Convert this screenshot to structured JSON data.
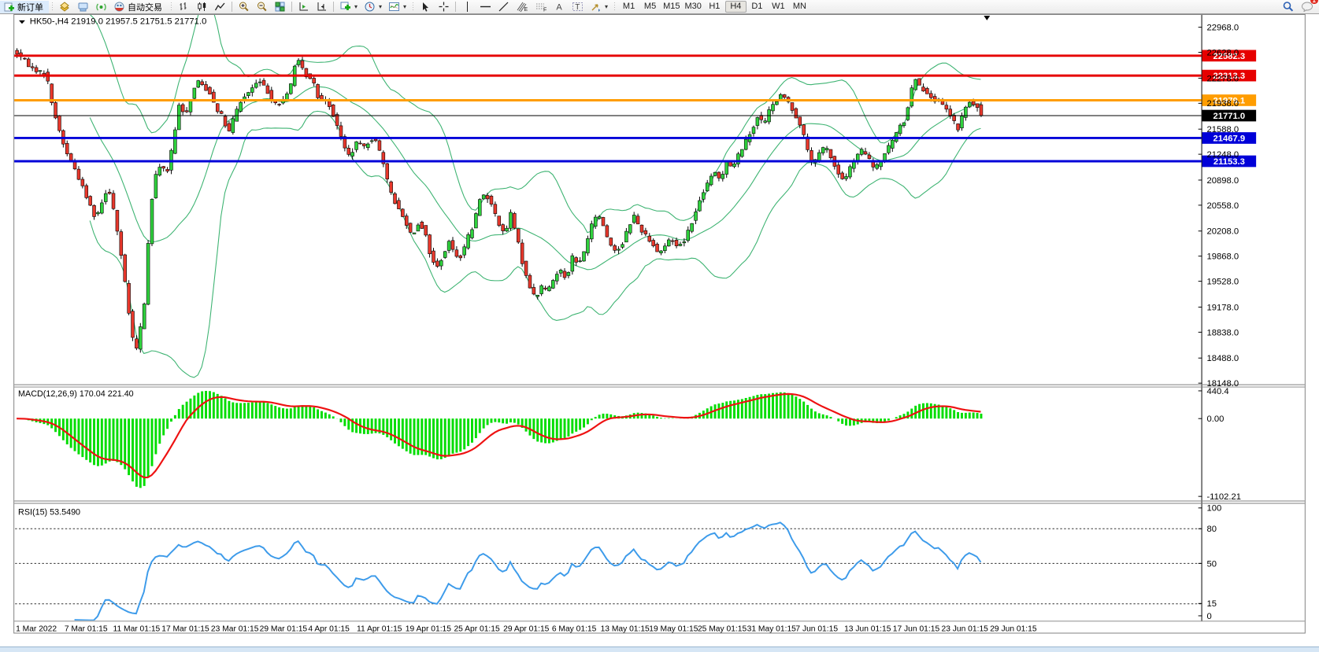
{
  "toolbar": {
    "new_order_label": "新订单",
    "auto_trading_label": "自动交易",
    "timeframes": [
      "M1",
      "M5",
      "M15",
      "M30",
      "H1",
      "H4",
      "D1",
      "W1",
      "MN"
    ],
    "active_timeframe": "H4",
    "notification_count": "1",
    "icons": [
      "new-order-plus",
      "charts-stack",
      "terminal",
      "signals",
      "autotrading-robot",
      "bar-chart",
      "candlestick-chart",
      "line-chart",
      "zoom-in",
      "zoom-out",
      "tile-windows",
      "scroll-to-end",
      "chart-shift",
      "new-chart",
      "periods-clock",
      "indicators",
      "cursor",
      "crosshair",
      "vertical-line",
      "horizontal-line",
      "trend-line",
      "fibonacci",
      "channels",
      "text",
      "text-label",
      "shapes",
      "search",
      "notifications"
    ]
  },
  "chart": {
    "title": "HK50-,H4",
    "ohlc_text": "21919.0 21957.5 21751.5 21771.0",
    "scale_ticks": [
      "22968.0",
      "22628.0",
      "22278.0",
      "21938.0",
      "21588.0",
      "21248.0",
      "20898.0",
      "20558.0",
      "20208.0",
      "19868.0",
      "19528.0",
      "19178.0",
      "18838.0",
      "18488.0",
      "18148.0"
    ],
    "levels": [
      {
        "value": "22582.3",
        "color": "#e60000",
        "width": 3
      },
      {
        "value": "22313.3",
        "color": "#e60000",
        "width": 3
      },
      {
        "value": "21979.1",
        "color": "#ff9d00",
        "width": 3
      },
      {
        "value": "21771.0",
        "color": "#000000",
        "width": 1
      },
      {
        "value": "21467.9",
        "color": "#0000d8",
        "width": 3
      },
      {
        "value": "21153.3",
        "color": "#0000d8",
        "width": 3
      }
    ]
  },
  "macd": {
    "label": "MACD(12,26,9) 170.04 221.40",
    "scale_values": [
      "440.4",
      "0.00",
      "-1102.21"
    ]
  },
  "rsi": {
    "label": "RSI(15) 53.5490",
    "scale_values": [
      "100",
      "80",
      "50",
      "15",
      "0"
    ],
    "dashed_levels": [
      80,
      50,
      15
    ]
  },
  "time_axis": {
    "labels": [
      [
        "1 Mar 2022",
        3
      ],
      [
        "7 Mar 01:15",
        66
      ],
      [
        "11 Mar 01:15",
        129
      ],
      [
        "17 Mar 01:15",
        192
      ],
      [
        "23 Mar 01:15",
        256
      ],
      [
        "29 Mar 01:15",
        319
      ],
      [
        "4 Apr 01:15",
        382
      ],
      [
        "11 Apr 01:15",
        445
      ],
      [
        "19 Apr 01:15",
        508
      ],
      [
        "25 Apr 01:15",
        571
      ],
      [
        "29 Apr 01:15",
        635
      ],
      [
        "6 May 01:15",
        698
      ],
      [
        "13 May 01:15",
        761
      ],
      [
        "19 May 01:15",
        824
      ],
      [
        "25 May 01:15",
        887
      ],
      [
        "31 May 01:15",
        951
      ],
      [
        "7 Jun 01:15",
        1014
      ],
      [
        "13 Jun 01:15",
        1077
      ],
      [
        "17 Jun 01:15",
        1140
      ],
      [
        "23 Jun 01:15",
        1203
      ],
      [
        "29 Jun 01:15",
        1266
      ]
    ]
  },
  "colors": {
    "bull": "#2fd13d",
    "bear": "#e8382c",
    "bollinger": "#3cb371",
    "macd_hist": "#00dd00",
    "macd_signal": "#ee1111",
    "rsi_line": "#3d9bea",
    "scale_text": "#000000"
  },
  "chart_data": {
    "type": "candlestick",
    "symbol": "HK50-",
    "timeframe": "H4",
    "last_bar": {
      "open": 21919.0,
      "high": 21957.5,
      "low": 21751.5,
      "close": 21771.0
    },
    "indicators": [
      "Bollinger Bands",
      "MACD(12,26,9)",
      "RSI(15)"
    ],
    "price_axis_range": [
      18148.0,
      22968.0
    ],
    "price_path": [
      [
        0,
        22650
      ],
      [
        10,
        22560
      ],
      [
        22,
        22420
      ],
      [
        32,
        22370
      ],
      [
        42,
        22330
      ],
      [
        50,
        21900
      ],
      [
        58,
        21600
      ],
      [
        66,
        21320
      ],
      [
        76,
        21120
      ],
      [
        86,
        20880
      ],
      [
        96,
        20620
      ],
      [
        106,
        20380
      ],
      [
        114,
        20600
      ],
      [
        122,
        20820
      ],
      [
        130,
        20470
      ],
      [
        138,
        19950
      ],
      [
        146,
        19350
      ],
      [
        152,
        18850
      ],
      [
        158,
        18560
      ],
      [
        164,
        18900
      ],
      [
        170,
        19300
      ],
      [
        176,
        20400
      ],
      [
        182,
        20900
      ],
      [
        190,
        21120
      ],
      [
        198,
        20980
      ],
      [
        206,
        21380
      ],
      [
        214,
        21900
      ],
      [
        222,
        21780
      ],
      [
        230,
        22020
      ],
      [
        238,
        22260
      ],
      [
        246,
        22160
      ],
      [
        254,
        22080
      ],
      [
        262,
        21880
      ],
      [
        270,
        21760
      ],
      [
        278,
        21520
      ],
      [
        286,
        21780
      ],
      [
        294,
        21960
      ],
      [
        302,
        22060
      ],
      [
        310,
        22160
      ],
      [
        318,
        22240
      ],
      [
        326,
        22140
      ],
      [
        334,
        22010
      ],
      [
        342,
        21910
      ],
      [
        350,
        21980
      ],
      [
        358,
        22150
      ],
      [
        366,
        22560
      ],
      [
        372,
        22430
      ],
      [
        380,
        22300
      ],
      [
        388,
        22230
      ],
      [
        396,
        21970
      ],
      [
        404,
        22010
      ],
      [
        412,
        21830
      ],
      [
        420,
        21620
      ],
      [
        428,
        21340
      ],
      [
        436,
        21210
      ],
      [
        444,
        21410
      ],
      [
        452,
        21340
      ],
      [
        460,
        21420
      ],
      [
        468,
        21480
      ],
      [
        476,
        21230
      ],
      [
        484,
        20890
      ],
      [
        492,
        20640
      ],
      [
        500,
        20480
      ],
      [
        508,
        20330
      ],
      [
        516,
        20140
      ],
      [
        524,
        20310
      ],
      [
        532,
        20230
      ],
      [
        540,
        19870
      ],
      [
        548,
        19700
      ],
      [
        556,
        19870
      ],
      [
        564,
        20060
      ],
      [
        572,
        19890
      ],
      [
        580,
        19860
      ],
      [
        588,
        20120
      ],
      [
        596,
        20280
      ],
      [
        604,
        20660
      ],
      [
        612,
        20700
      ],
      [
        620,
        20540
      ],
      [
        628,
        20330
      ],
      [
        636,
        20140
      ],
      [
        644,
        20440
      ],
      [
        652,
        20130
      ],
      [
        660,
        19740
      ],
      [
        668,
        19480
      ],
      [
        676,
        19290
      ],
      [
        684,
        19460
      ],
      [
        692,
        19400
      ],
      [
        700,
        19560
      ],
      [
        708,
        19700
      ],
      [
        716,
        19560
      ],
      [
        724,
        19860
      ],
      [
        732,
        19740
      ],
      [
        740,
        19960
      ],
      [
        748,
        20260
      ],
      [
        756,
        20450
      ],
      [
        764,
        20290
      ],
      [
        772,
        20040
      ],
      [
        780,
        19940
      ],
      [
        788,
        20010
      ],
      [
        796,
        20260
      ],
      [
        804,
        20410
      ],
      [
        812,
        20240
      ],
      [
        820,
        20140
      ],
      [
        828,
        20040
      ],
      [
        836,
        19900
      ],
      [
        844,
        20010
      ],
      [
        852,
        20110
      ],
      [
        860,
        20000
      ],
      [
        868,
        20060
      ],
      [
        876,
        20260
      ],
      [
        884,
        20460
      ],
      [
        892,
        20710
      ],
      [
        900,
        20860
      ],
      [
        908,
        21010
      ],
      [
        916,
        20900
      ],
      [
        924,
        21160
      ],
      [
        932,
        21060
      ],
      [
        940,
        21260
      ],
      [
        948,
        21410
      ],
      [
        956,
        21560
      ],
      [
        964,
        21760
      ],
      [
        972,
        21660
      ],
      [
        980,
        21860
      ],
      [
        988,
        21960
      ],
      [
        996,
        22060
      ],
      [
        1004,
        21950
      ],
      [
        1012,
        21800
      ],
      [
        1020,
        21640
      ],
      [
        1028,
        21340
      ],
      [
        1036,
        21090
      ],
      [
        1044,
        21260
      ],
      [
        1052,
        21360
      ],
      [
        1060,
        21190
      ],
      [
        1068,
        20990
      ],
      [
        1076,
        20890
      ],
      [
        1084,
        21060
      ],
      [
        1092,
        21210
      ],
      [
        1100,
        21310
      ],
      [
        1108,
        21190
      ],
      [
        1116,
        21040
      ],
      [
        1124,
        21160
      ],
      [
        1132,
        21310
      ],
      [
        1140,
        21460
      ],
      [
        1148,
        21610
      ],
      [
        1156,
        21720
      ],
      [
        1162,
        22060
      ],
      [
        1168,
        22300
      ],
      [
        1176,
        22140
      ],
      [
        1184,
        22090
      ],
      [
        1192,
        21990
      ],
      [
        1200,
        21950
      ],
      [
        1208,
        21860
      ],
      [
        1216,
        21740
      ],
      [
        1224,
        21580
      ],
      [
        1232,
        21860
      ],
      [
        1240,
        21960
      ],
      [
        1248,
        21890
      ],
      [
        1256,
        21790
      ]
    ]
  }
}
